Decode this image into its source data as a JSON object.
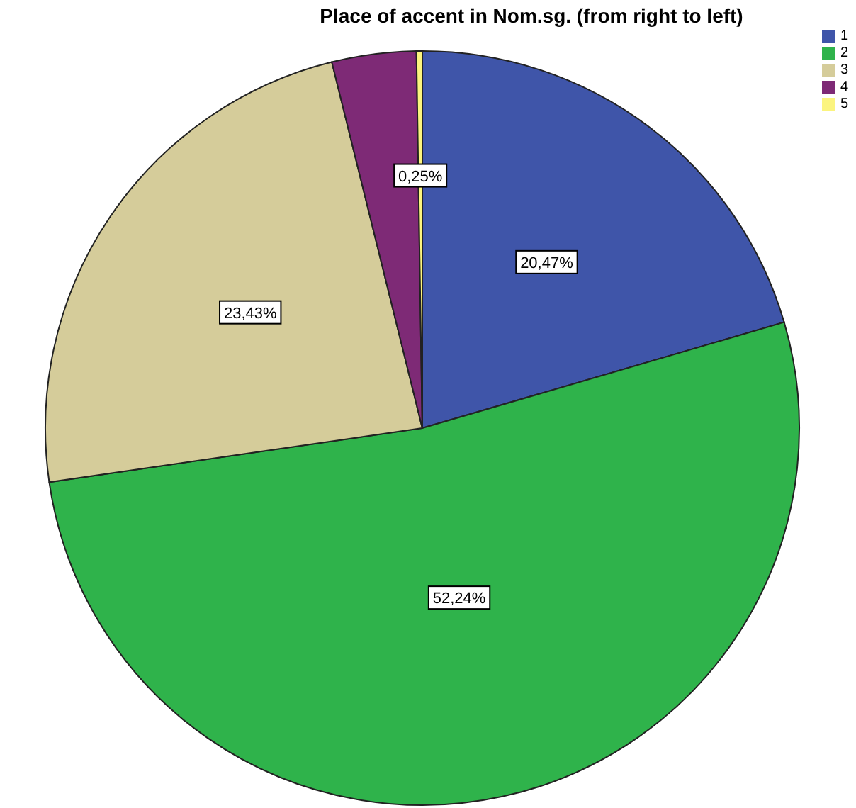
{
  "chart_data": {
    "type": "pie",
    "title": "Place of accent in Nom.sg. (from right to left)",
    "categories": [
      "1",
      "2",
      "3",
      "4",
      "5"
    ],
    "values": [
      20.47,
      52.24,
      23.43,
      3.61,
      0.25
    ],
    "colors": [
      "#3f55a9",
      "#2fb34b",
      "#d5cc9a",
      "#7e2a76",
      "#fbf47f"
    ],
    "value_labels": [
      "20,47%",
      "52,24%",
      "23,43%",
      null,
      "0,25%"
    ],
    "legend": "top right"
  }
}
